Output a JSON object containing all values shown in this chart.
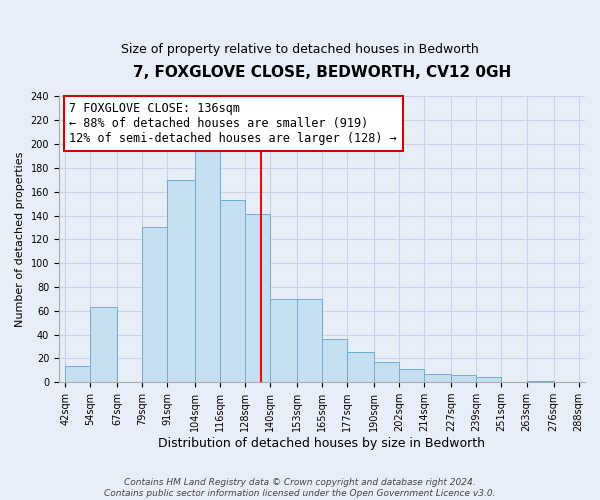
{
  "title": "7, FOXGLOVE CLOSE, BEDWORTH, CV12 0GH",
  "subtitle": "Size of property relative to detached houses in Bedworth",
  "xlabel": "Distribution of detached houses by size in Bedworth",
  "ylabel": "Number of detached properties",
  "bin_edges": [
    42,
    54,
    67,
    79,
    91,
    104,
    116,
    128,
    140,
    153,
    165,
    177,
    190,
    202,
    214,
    227,
    239,
    251,
    263,
    276,
    288
  ],
  "bar_heights": [
    14,
    63,
    0,
    130,
    170,
    200,
    153,
    141,
    70,
    70,
    36,
    25,
    17,
    11,
    7,
    6,
    4,
    0,
    1,
    0
  ],
  "bar_color": "#c5dff0",
  "bar_edgecolor": "#6baed6",
  "reference_line_x": 136,
  "reference_line_color": "red",
  "ylim": [
    0,
    240
  ],
  "yticks": [
    0,
    20,
    40,
    60,
    80,
    100,
    120,
    140,
    160,
    180,
    200,
    220,
    240
  ],
  "xtick_labels": [
    "42sqm",
    "54sqm",
    "67sqm",
    "79sqm",
    "91sqm",
    "104sqm",
    "116sqm",
    "128sqm",
    "140sqm",
    "153sqm",
    "165sqm",
    "177sqm",
    "190sqm",
    "202sqm",
    "214sqm",
    "227sqm",
    "239sqm",
    "251sqm",
    "263sqm",
    "276sqm",
    "288sqm"
  ],
  "annotation_title": "7 FOXGLOVE CLOSE: 136sqm",
  "annotation_line1": "← 88% of detached houses are smaller (919)",
  "annotation_line2": "12% of semi-detached houses are larger (128) →",
  "annotation_box_color": "white",
  "annotation_box_edgecolor": "#cc0000",
  "footer_line1": "Contains HM Land Registry data © Crown copyright and database right 2024.",
  "footer_line2": "Contains public sector information licensed under the Open Government Licence v3.0.",
  "background_color": "#e8eef8",
  "grid_color": "#c8d4e8",
  "title_fontsize": 11,
  "subtitle_fontsize": 9,
  "xlabel_fontsize": 9,
  "ylabel_fontsize": 8,
  "tick_fontsize": 7,
  "footer_fontsize": 6.5,
  "annotation_fontsize": 8.5
}
